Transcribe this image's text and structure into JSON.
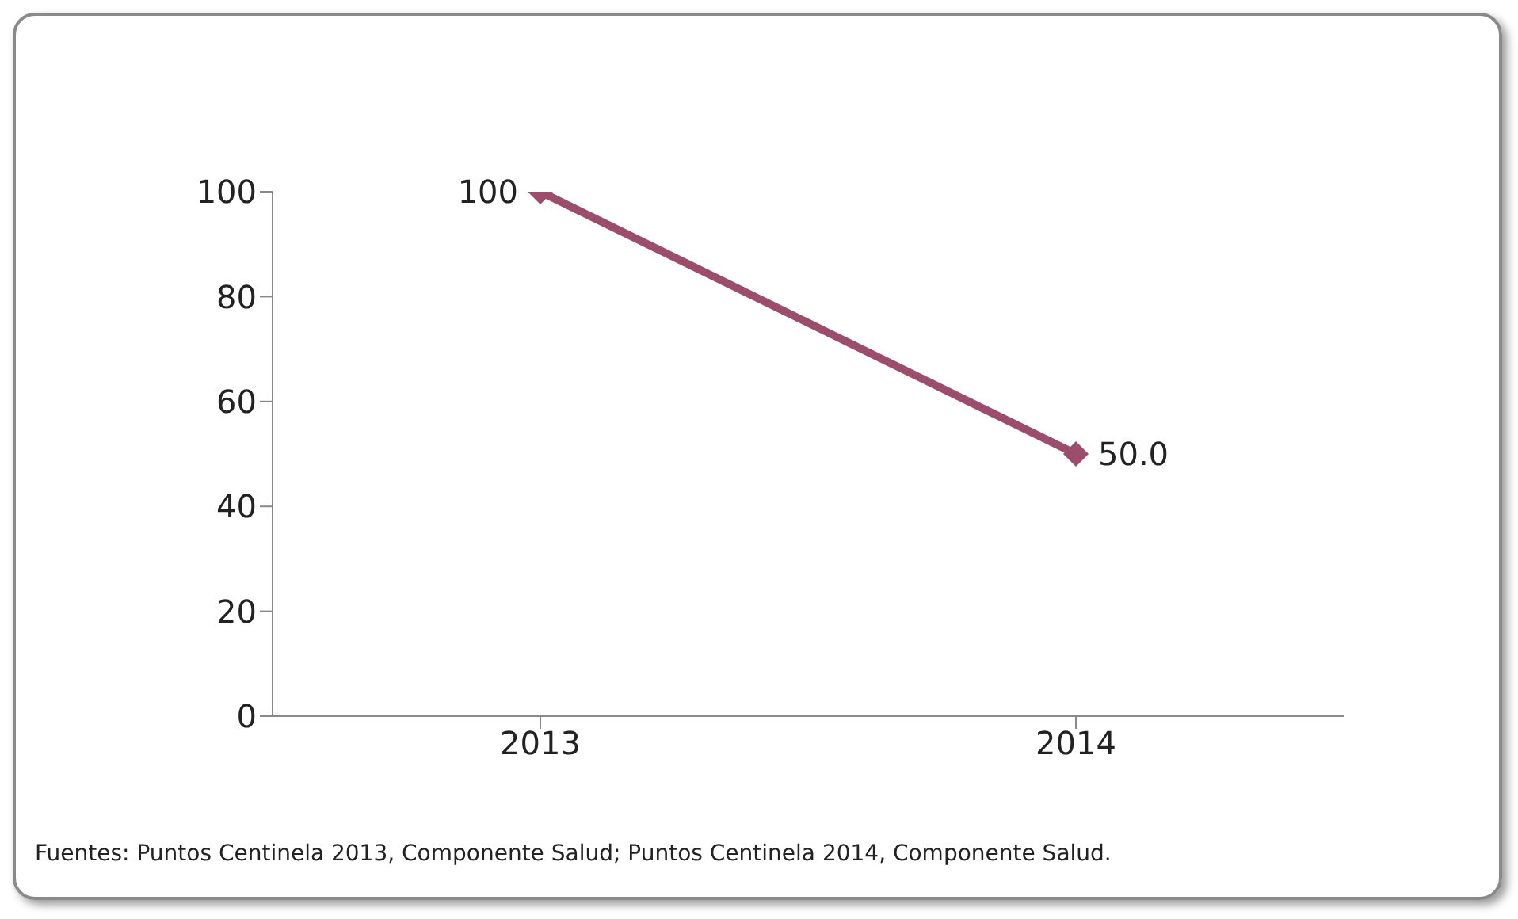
{
  "chart_data": {
    "type": "line",
    "categories": [
      "2013",
      "2014"
    ],
    "series": [
      {
        "color": "#9b4d6b",
        "values": [
          100,
          50
        ],
        "value_labels": [
          "100",
          "50.0"
        ]
      }
    ],
    "ylim": [
      0,
      100
    ],
    "yticks": [
      0,
      20,
      40,
      60,
      80,
      100
    ],
    "grid": false,
    "legend": false,
    "marker": "diamond",
    "line_style": "solid",
    "annotations": [
      "Fuentes: Puntos Centinela 2013, Componente Salud; Puntos Centinela 2014, Componente Salud."
    ]
  }
}
